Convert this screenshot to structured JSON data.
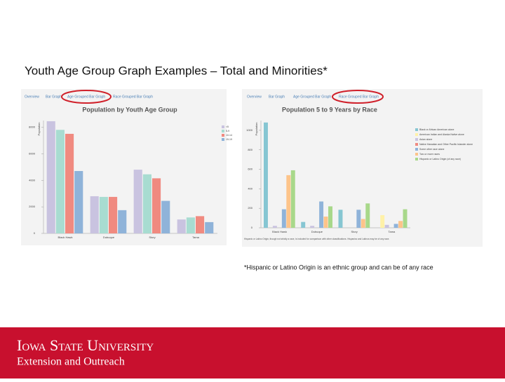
{
  "title": "Youth Age Group Graph Examples – Total and Minorities*",
  "footnote": "*Hispanic or Latino Origin is an ethnic group and can be of any race",
  "brand": {
    "name": "Iowa State University",
    "unit": "Extension and Outreach"
  },
  "chart_data": [
    {
      "type": "bar",
      "tabs": [
        "Overview",
        "Bar Graph",
        "Age Grouped Bar Graph",
        "Race Grouped Bar Graph"
      ],
      "title": "Population by Youth Age Group",
      "y_label": "Population",
      "categories": [
        "Black Hawk",
        "Dubuque",
        "Story",
        "Tama"
      ],
      "series": [
        {
          "name": "<5",
          "color": "#c9c3e0",
          "values": [
            8450,
            2800,
            4800,
            1050
          ]
        },
        {
          "name": "5-9",
          "color": "#a8dcd1",
          "values": [
            7800,
            2750,
            4450,
            1200
          ]
        },
        {
          "name": "10-14",
          "color": "#f08a80",
          "values": [
            7500,
            2750,
            4150,
            1300
          ]
        },
        {
          "name": "15-19",
          "color": "#8fb3d9",
          "values": [
            4700,
            1750,
            2450,
            850
          ]
        }
      ],
      "ylim": [
        0,
        8500
      ],
      "yticks": [
        0,
        2000,
        4000,
        6000,
        8000
      ],
      "legend": "right"
    },
    {
      "type": "bar",
      "tabs": [
        "Overview",
        "Bar Graph",
        "Age Grouped Bar Graph",
        "Race Grouped Bar Graph"
      ],
      "title": "Population 5 to 9 Years by Race",
      "y_label": "Population",
      "categories": [
        "Black Hawk",
        "Dubuque",
        "Story",
        "Tama"
      ],
      "series": [
        {
          "name": "Black or African American alone",
          "color": "#86c6d2",
          "values": [
            1080,
            60,
            185,
            0
          ]
        },
        {
          "name": "American Indian and Alaska Native alone",
          "color": "#fff1a8",
          "values": [
            0,
            0,
            0,
            130
          ]
        },
        {
          "name": "Asian alone",
          "color": "#c9c3e0",
          "values": [
            20,
            20,
            0,
            30
          ]
        },
        {
          "name": "Native Hawaiian and Other Pacific Islander alone",
          "color": "#f08a80",
          "values": [
            0,
            0,
            0,
            0
          ]
        },
        {
          "name": "Some other race alone",
          "color": "#8fb3d9",
          "values": [
            190,
            270,
            185,
            40
          ]
        },
        {
          "name": "Two or more races",
          "color": "#fdc48a",
          "values": [
            540,
            115,
            90,
            70
          ]
        },
        {
          "name": "Hispanic or Latino Origin (of any race)",
          "color": "#a8d88a",
          "values": [
            590,
            220,
            250,
            190
          ]
        }
      ],
      "ylim": [
        0,
        1100
      ],
      "yticks": [
        0,
        200,
        400,
        600,
        800,
        1000
      ],
      "legend": "right",
      "note": "Hispanic or Latino Origin, though not strictly a race, is included for comparison with other classifications. Hispanics and Latinos may be of any race."
    }
  ]
}
